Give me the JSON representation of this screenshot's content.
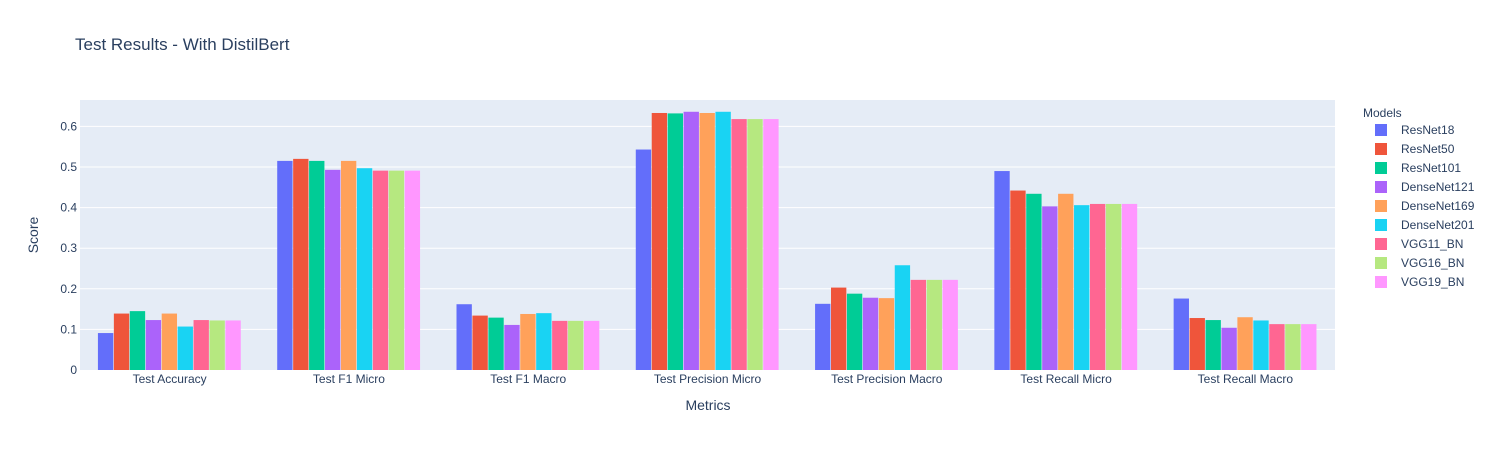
{
  "chart_data": {
    "type": "bar",
    "title": "Test Results - With DistilBert",
    "xlabel": "Metrics",
    "ylabel": "Score",
    "ylim": [
      0,
      0.665
    ],
    "yticks": [
      0,
      0.1,
      0.2,
      0.3,
      0.4,
      0.5,
      0.6
    ],
    "ytick_labels": [
      "0",
      "0.1",
      "0.2",
      "0.3",
      "0.4",
      "0.5",
      "0.6"
    ],
    "grid": true,
    "legend_title": "Models",
    "legend_position": "right",
    "background": "#e5ecf6",
    "categories": [
      "Test Accuracy",
      "Test F1 Micro",
      "Test F1 Macro",
      "Test Precision Micro",
      "Test Precision Macro",
      "Test Recall Micro",
      "Test Recall Macro"
    ],
    "series": [
      {
        "name": "ResNet18",
        "color": "#636efa",
        "values": [
          0.091,
          0.515,
          0.162,
          0.543,
          0.163,
          0.49,
          0.176
        ]
      },
      {
        "name": "ResNet50",
        "color": "#ef553b",
        "values": [
          0.139,
          0.52,
          0.134,
          0.633,
          0.203,
          0.442,
          0.128
        ]
      },
      {
        "name": "ResNet101",
        "color": "#00cc96",
        "values": [
          0.145,
          0.515,
          0.129,
          0.632,
          0.188,
          0.434,
          0.123
        ]
      },
      {
        "name": "DenseNet121",
        "color": "#ab63fa",
        "values": [
          0.123,
          0.493,
          0.111,
          0.636,
          0.178,
          0.403,
          0.104
        ]
      },
      {
        "name": "DenseNet169",
        "color": "#ffa15a",
        "values": [
          0.139,
          0.515,
          0.138,
          0.633,
          0.177,
          0.434,
          0.13
        ]
      },
      {
        "name": "DenseNet201",
        "color": "#19d3f3",
        "values": [
          0.107,
          0.497,
          0.14,
          0.636,
          0.258,
          0.406,
          0.122
        ]
      },
      {
        "name": "VGG11_BN",
        "color": "#ff6692",
        "values": [
          0.123,
          0.491,
          0.121,
          0.618,
          0.222,
          0.409,
          0.113
        ]
      },
      {
        "name": "VGG16_BN",
        "color": "#b6e880",
        "values": [
          0.122,
          0.491,
          0.121,
          0.618,
          0.222,
          0.409,
          0.113
        ]
      },
      {
        "name": "VGG19_BN",
        "color": "#ff97ff",
        "values": [
          0.122,
          0.491,
          0.121,
          0.618,
          0.222,
          0.409,
          0.113
        ]
      }
    ]
  }
}
